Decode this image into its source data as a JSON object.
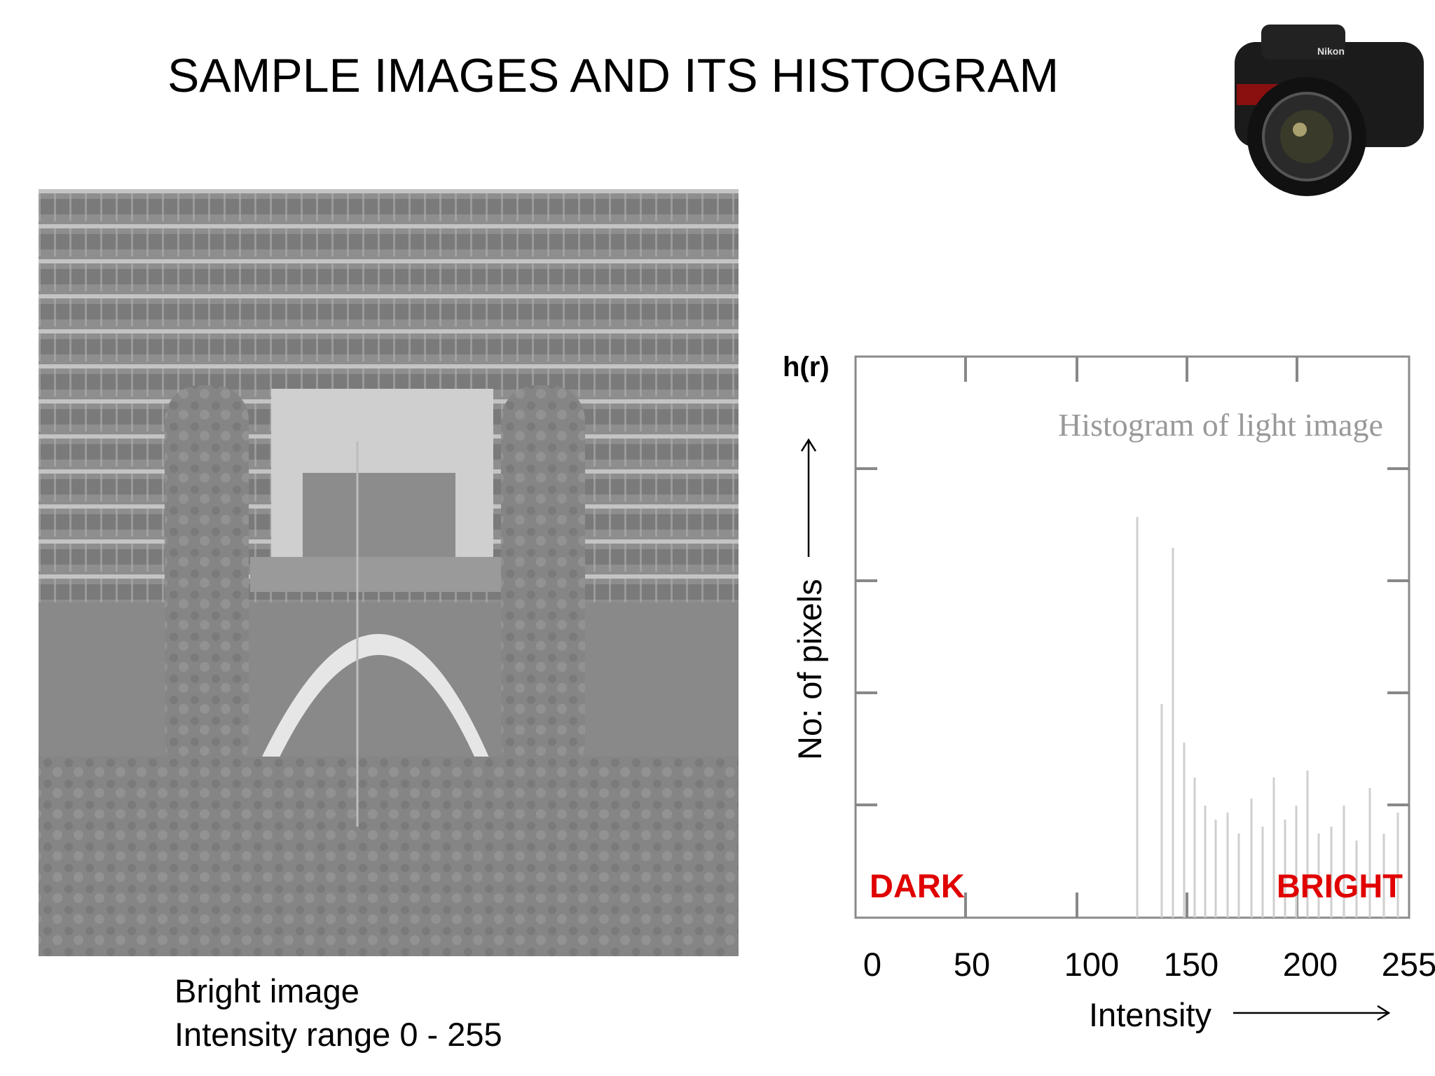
{
  "title": "SAMPLE IMAGES AND ITS HISTOGRAM",
  "image_caption": [
    "Bright image",
    "Intensity range 0 - 255"
  ],
  "histogram": {
    "inner_title": "Histogram of light image",
    "y_label": "h(r)",
    "y_axis_label": "No: of pixels",
    "dark_label": "DARK",
    "bright_label": "BRIGHT",
    "x_tick_labels": [
      "0",
      "50",
      "100",
      "150",
      "200",
      "255"
    ],
    "x_axis_label": "Intensity"
  }
}
